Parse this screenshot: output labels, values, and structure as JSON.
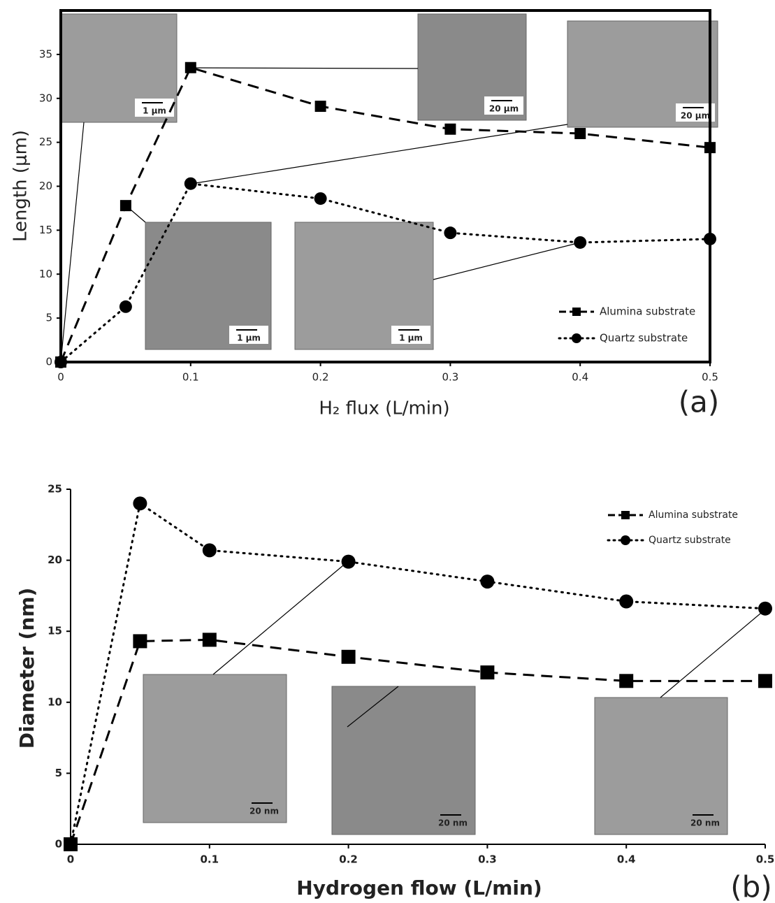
{
  "chart_data": [
    {
      "type": "line",
      "panel_label": "(a)",
      "xlabel": "H₂ flux (L/min)",
      "ylabel": "Length (μm)",
      "x": [
        0,
        0.05,
        0.1,
        0.2,
        0.3,
        0.4,
        0.5
      ],
      "series": [
        {
          "name": "Alumina substrate",
          "color": "#000000",
          "marker": "square",
          "linestyle": "dashed",
          "values": [
            0,
            17.8,
            33.5,
            29.1,
            26.5,
            26.0,
            24.4
          ]
        },
        {
          "name": "Quartz substrate",
          "color": "#000000",
          "marker": "circle",
          "linestyle": "dotted",
          "values": [
            0,
            6.3,
            20.3,
            18.6,
            14.7,
            13.6,
            14.0
          ]
        }
      ],
      "xlim": [
        0,
        0.5
      ],
      "xticks": [
        0,
        0.1,
        0.2,
        0.3,
        0.4,
        0.5
      ],
      "ylim": [
        0,
        40
      ],
      "yticks": [
        0,
        5,
        10,
        15,
        20,
        25,
        30,
        35
      ],
      "legend": "lower right",
      "insets": [
        {
          "label": "1 μm"
        },
        {
          "label": "20 μm"
        },
        {
          "label": "20 μm"
        },
        {
          "label": "1 μm"
        },
        {
          "label": "1 μm"
        }
      ]
    },
    {
      "type": "line",
      "panel_label": "(b)",
      "xlabel": "Hydrogen flow (L/min)",
      "ylabel": "Diameter (nm)",
      "x": [
        0,
        0.05,
        0.1,
        0.2,
        0.3,
        0.4,
        0.5
      ],
      "series": [
        {
          "name": "Alumina substrate",
          "color": "#000000",
          "marker": "square",
          "linestyle": "dashed",
          "values": [
            0,
            14.3,
            14.4,
            13.2,
            12.1,
            11.5,
            11.5
          ]
        },
        {
          "name": "Quartz substrate",
          "color": "#000000",
          "marker": "circle",
          "linestyle": "dotted",
          "values": [
            0,
            24.0,
            20.7,
            19.9,
            18.5,
            17.1,
            16.6
          ]
        }
      ],
      "xlim": [
        0,
        0.5
      ],
      "xticks": [
        0,
        0.1,
        0.2,
        0.3,
        0.4,
        0.5
      ],
      "ylim": [
        0,
        25
      ],
      "yticks": [
        0,
        5,
        10,
        15,
        20,
        25
      ],
      "legend": "upper right",
      "insets": [
        {
          "label": "20 nm"
        },
        {
          "label": "20 nm"
        },
        {
          "label": "20 nm"
        }
      ]
    }
  ]
}
